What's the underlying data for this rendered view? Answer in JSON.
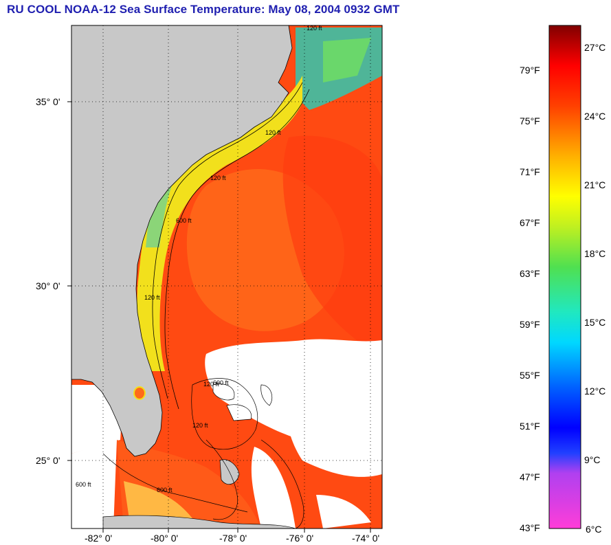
{
  "title": "RU COOL  NOAA-12  Sea Surface Temperature:  May 08, 2004 0932 GMT",
  "map": {
    "lat_labels": [
      "35° 0'",
      "30° 0'",
      "25° 0'"
    ],
    "lon_labels": [
      "-82° 0'",
      "-80° 0'",
      "-78° 0'",
      "-76° 0'",
      "-74° 0'"
    ],
    "contour_labels": [
      "120 ft",
      "120 ft",
      "120 ft",
      "600 ft",
      "120 ft",
      "120 ft",
      "600 ft",
      "600 ft",
      "120 ft",
      "600 ft"
    ],
    "colors": {
      "land": "#c8c8c8",
      "gulf_stream": "#ff4a12",
      "shelf": "#f2e01c",
      "cloud": "#ffffff"
    }
  },
  "colorbar": {
    "fahrenheit": [
      "79°F",
      "75°F",
      "71°F",
      "67°F",
      "63°F",
      "59°F",
      "55°F",
      "51°F",
      "47°F",
      "43°F"
    ],
    "celsius": [
      "27°C",
      "24°C",
      "21°C",
      "18°C",
      "15°C",
      "12°C",
      "9°C",
      "6°C"
    ]
  }
}
